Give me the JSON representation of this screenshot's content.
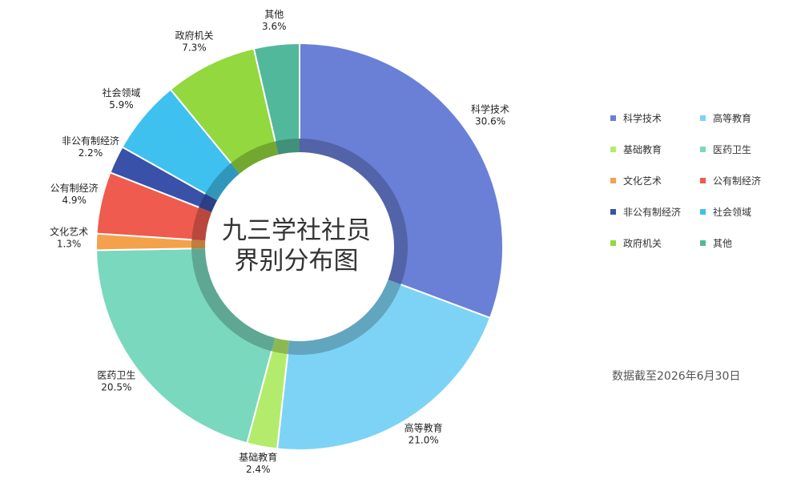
{
  "chart_data": {
    "type": "pie",
    "title": "九三学社社员界别分布图",
    "title_lines": [
      "九三学社社员",
      "界别分布图"
    ],
    "series": [
      {
        "name": "科学技术",
        "value": 30.6,
        "label": "30.6%",
        "color": "#6a7fd6"
      },
      {
        "name": "高等教育",
        "value": 21.0,
        "label": "21.0%",
        "color": "#7dd3f5"
      },
      {
        "name": "基础教育",
        "value": 2.4,
        "label": "2.4%",
        "color": "#b3ec6c"
      },
      {
        "name": "医药卫生",
        "value": 20.5,
        "label": "20.5%",
        "color": "#79d8bd"
      },
      {
        "name": "文化艺术",
        "value": 1.3,
        "label": "1.3%",
        "color": "#f5a14b"
      },
      {
        "name": "公有制经济",
        "value": 4.9,
        "label": "4.9%",
        "color": "#ef5b4e"
      },
      {
        "name": "非公有制经济",
        "value": 2.2,
        "label": "2.2%",
        "color": "#3a51a9"
      },
      {
        "name": "社会领域",
        "value": 5.9,
        "label": "5.9%",
        "color": "#3ec1ef"
      },
      {
        "name": "政府机关",
        "value": 7.3,
        "label": "7.3%",
        "color": "#92d83e"
      },
      {
        "name": "其他",
        "value": 3.6,
        "label": "3.6%",
        "color": "#52b89c"
      }
    ],
    "legend_position": "right",
    "note": "数据截至2026年6月30日"
  }
}
